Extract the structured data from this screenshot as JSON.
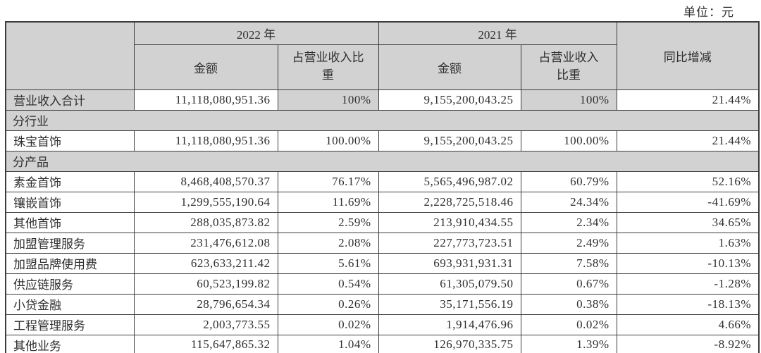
{
  "unit_label": "单位：元",
  "colors": {
    "header_fill": "#d2d2d2",
    "border": "#3d3d3d",
    "text": "#2f2f2f",
    "row_fill": "#ffffff"
  },
  "table": {
    "col_headers": {
      "year_2022": "2022 年",
      "year_2021": "2021 年",
      "amount_2022": "金额",
      "share_2022": "占营业收入比\n重",
      "amount_2021": "金额",
      "share_2021": "占营业收入\n比重",
      "yoy": "同比增减"
    },
    "rows": [
      {
        "type": "total",
        "label": "营业收入合计",
        "a2022": "11,118,080,951.36",
        "p2022": "100%",
        "a2021": "9,155,200,043.25",
        "p2021": "100%",
        "yoy": "21.44%"
      },
      {
        "type": "section",
        "label": "分行业"
      },
      {
        "type": "data",
        "label": "珠宝首饰",
        "a2022": "11,118,080,951.36",
        "p2022": "100.00%",
        "a2021": "9,155,200,043.25",
        "p2021": "100.00%",
        "yoy": "21.44%"
      },
      {
        "type": "section",
        "label": "分产品"
      },
      {
        "type": "data",
        "label": "素金首饰",
        "a2022": "8,468,408,570.37",
        "p2022": "76.17%",
        "a2021": "5,565,496,987.02",
        "p2021": "60.79%",
        "yoy": "52.16%"
      },
      {
        "type": "data",
        "label": "镶嵌首饰",
        "a2022": "1,299,555,190.64",
        "p2022": "11.69%",
        "a2021": "2,228,725,518.46",
        "p2021": "24.34%",
        "yoy": "-41.69%"
      },
      {
        "type": "data",
        "label": "其他首饰",
        "a2022": "288,035,873.82",
        "p2022": "2.59%",
        "a2021": "213,910,434.55",
        "p2021": "2.34%",
        "yoy": "34.65%"
      },
      {
        "type": "data",
        "label": "加盟管理服务",
        "a2022": "231,476,612.08",
        "p2022": "2.08%",
        "a2021": "227,773,723.51",
        "p2021": "2.49%",
        "yoy": "1.63%"
      },
      {
        "type": "data",
        "label": "加盟品牌使用费",
        "a2022": "623,633,211.42",
        "p2022": "5.61%",
        "a2021": "693,931,931.31",
        "p2021": "7.58%",
        "yoy": "-10.13%"
      },
      {
        "type": "data",
        "label": "供应链服务",
        "a2022": "60,523,199.82",
        "p2022": "0.54%",
        "a2021": "61,305,079.50",
        "p2021": "0.67%",
        "yoy": "-1.28%"
      },
      {
        "type": "data",
        "label": "小贷金融",
        "a2022": "28,796,654.34",
        "p2022": "0.26%",
        "a2021": "35,171,556.19",
        "p2021": "0.38%",
        "yoy": "-18.13%"
      },
      {
        "type": "data",
        "label": "工程管理服务",
        "a2022": "2,003,773.55",
        "p2022": "0.02%",
        "a2021": "1,914,476.96",
        "p2021": "0.02%",
        "yoy": "4.66%"
      },
      {
        "type": "data",
        "label": "其他业务",
        "a2022": "115,647,865.32",
        "p2022": "1.04%",
        "a2021": "126,970,335.75",
        "p2021": "1.39%",
        "yoy": "-8.92%"
      }
    ]
  }
}
